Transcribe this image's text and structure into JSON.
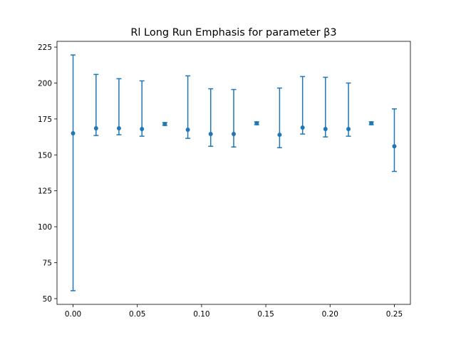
{
  "chart_data": {
    "type": "scatter",
    "title": "Rl Long Run Emphasis for parameter β3",
    "xlabel": "",
    "ylabel": "",
    "xlim": [
      -0.0125,
      0.2625
    ],
    "ylim": [
      46,
      229
    ],
    "xticks": [
      0.0,
      0.05,
      0.1,
      0.15,
      0.2,
      0.25
    ],
    "xtick_labels": [
      "0.00",
      "0.05",
      "0.10",
      "0.15",
      "0.20",
      "0.25"
    ],
    "yticks": [
      50,
      75,
      100,
      125,
      150,
      175,
      200,
      225
    ],
    "ytick_labels": [
      "50",
      "75",
      "100",
      "125",
      "150",
      "175",
      "200",
      "225"
    ],
    "grid": false,
    "color": "#1f77b4",
    "points": [
      {
        "x": 0.0,
        "y": 165.0,
        "low": 55.5,
        "high": 219.5
      },
      {
        "x": 0.0179,
        "y": 168.5,
        "low": 163.5,
        "high": 206.0
      },
      {
        "x": 0.0357,
        "y": 168.5,
        "low": 164.0,
        "high": 203.0
      },
      {
        "x": 0.0536,
        "y": 168.0,
        "low": 163.0,
        "high": 201.5
      },
      {
        "x": 0.0714,
        "y": 171.5,
        "low": 170.5,
        "high": 172.5
      },
      {
        "x": 0.0893,
        "y": 167.5,
        "low": 161.5,
        "high": 205.0
      },
      {
        "x": 0.1071,
        "y": 164.5,
        "low": 156.0,
        "high": 196.0
      },
      {
        "x": 0.125,
        "y": 164.5,
        "low": 155.5,
        "high": 195.5
      },
      {
        "x": 0.1429,
        "y": 172.0,
        "low": 171.0,
        "high": 173.0
      },
      {
        "x": 0.1607,
        "y": 164.0,
        "low": 155.0,
        "high": 196.5
      },
      {
        "x": 0.1786,
        "y": 169.0,
        "low": 164.5,
        "high": 204.5
      },
      {
        "x": 0.1964,
        "y": 168.0,
        "low": 162.5,
        "high": 204.0
      },
      {
        "x": 0.2143,
        "y": 168.0,
        "low": 163.0,
        "high": 200.0
      },
      {
        "x": 0.2321,
        "y": 172.0,
        "low": 171.0,
        "high": 173.0
      },
      {
        "x": 0.25,
        "y": 156.0,
        "low": 138.5,
        "high": 182.0
      }
    ]
  }
}
